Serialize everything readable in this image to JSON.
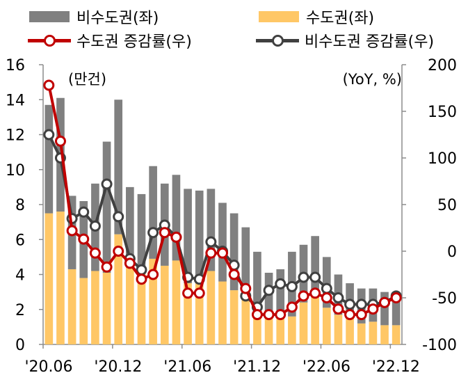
{
  "colors": {
    "non_capital": "#808080",
    "capital": "#FFC766",
    "capital_line": "#C00000",
    "non_capital_line": "#404040",
    "axis": "#8c8c8c"
  },
  "legend": {
    "non_capital": "비수도권(좌)",
    "capital": "수도권(좌)",
    "capital_growth": "수도권 증감률(우)",
    "non_capital_growth": "비수도권 증감률(우)"
  },
  "chart_data": {
    "type": "bar+line",
    "left_unit": "(만건)",
    "right_unit": "(YoY, %)",
    "ylim_left": [
      0,
      16
    ],
    "left_ticks": [
      0,
      2,
      4,
      6,
      8,
      10,
      12,
      14,
      16
    ],
    "ylim_right": [
      -100,
      200
    ],
    "right_ticks": [
      -100,
      -50,
      0,
      50,
      100,
      150,
      200
    ],
    "x_tick_labels": [
      "'20.06",
      "'20.12",
      "'21.06",
      "'21.12",
      "'22.06",
      "'22.12"
    ],
    "x_tick_index": [
      0,
      6,
      12,
      18,
      24,
      30
    ],
    "months": [
      "'20.06",
      "'20.07",
      "'20.08",
      "'20.09",
      "'20.10",
      "'20.11",
      "'20.12",
      "'21.01",
      "'21.02",
      "'21.03",
      "'21.04",
      "'21.05",
      "'21.06",
      "'21.07",
      "'21.08",
      "'21.09",
      "'21.10",
      "'21.11",
      "'21.12",
      "'22.01",
      "'22.02",
      "'22.03",
      "'22.04",
      "'22.05",
      "'22.06",
      "'22.07",
      "'22.08",
      "'22.09",
      "'22.10",
      "'22.11",
      "'22.12"
    ],
    "series": [
      {
        "name": "수도권(좌)",
        "type": "bar",
        "axis": "left",
        "values": [
          7.5,
          7.6,
          4.3,
          3.8,
          4.2,
          4.1,
          6.3,
          5.1,
          4.5,
          4.9,
          4.5,
          4.8,
          3.5,
          3.5,
          4.2,
          3.6,
          3.1,
          2.6,
          1.8,
          1.6,
          1.7,
          1.6,
          2.4,
          2.8,
          2.1,
          1.7,
          1.5,
          1.2,
          1.3,
          1.1,
          1.1
        ]
      },
      {
        "name": "비수도권(좌)",
        "type": "bar",
        "axis": "left",
        "values": [
          6.2,
          6.5,
          4.2,
          4.4,
          5.0,
          7.5,
          7.7,
          3.9,
          4.1,
          5.3,
          4.7,
          4.9,
          5.4,
          5.3,
          4.7,
          4.5,
          4.4,
          4.1,
          3.5,
          2.5,
          2.6,
          3.7,
          3.3,
          3.4,
          2.9,
          2.3,
          2.0,
          2.0,
          1.9,
          1.9,
          1.8
        ]
      },
      {
        "name": "수도권 증감률(우)",
        "type": "line",
        "axis": "right",
        "values": [
          178,
          118,
          22,
          13,
          -2,
          -17,
          0,
          -13,
          -30,
          -25,
          20,
          15,
          -45,
          -45,
          -2,
          -2,
          -25,
          -40,
          -68,
          -68,
          -68,
          -60,
          -48,
          -45,
          -50,
          -62,
          -68,
          -68,
          -62,
          -55,
          -50
        ]
      },
      {
        "name": "비수도권 증감률(우)",
        "type": "line",
        "axis": "right",
        "values": [
          125,
          100,
          35,
          42,
          27,
          72,
          37,
          -8,
          -20,
          20,
          28,
          15,
          -28,
          -30,
          10,
          0,
          -15,
          -48,
          -60,
          -42,
          -35,
          -38,
          -28,
          -28,
          -40,
          -50,
          -57,
          -57,
          -57,
          -55,
          -48
        ]
      }
    ]
  }
}
